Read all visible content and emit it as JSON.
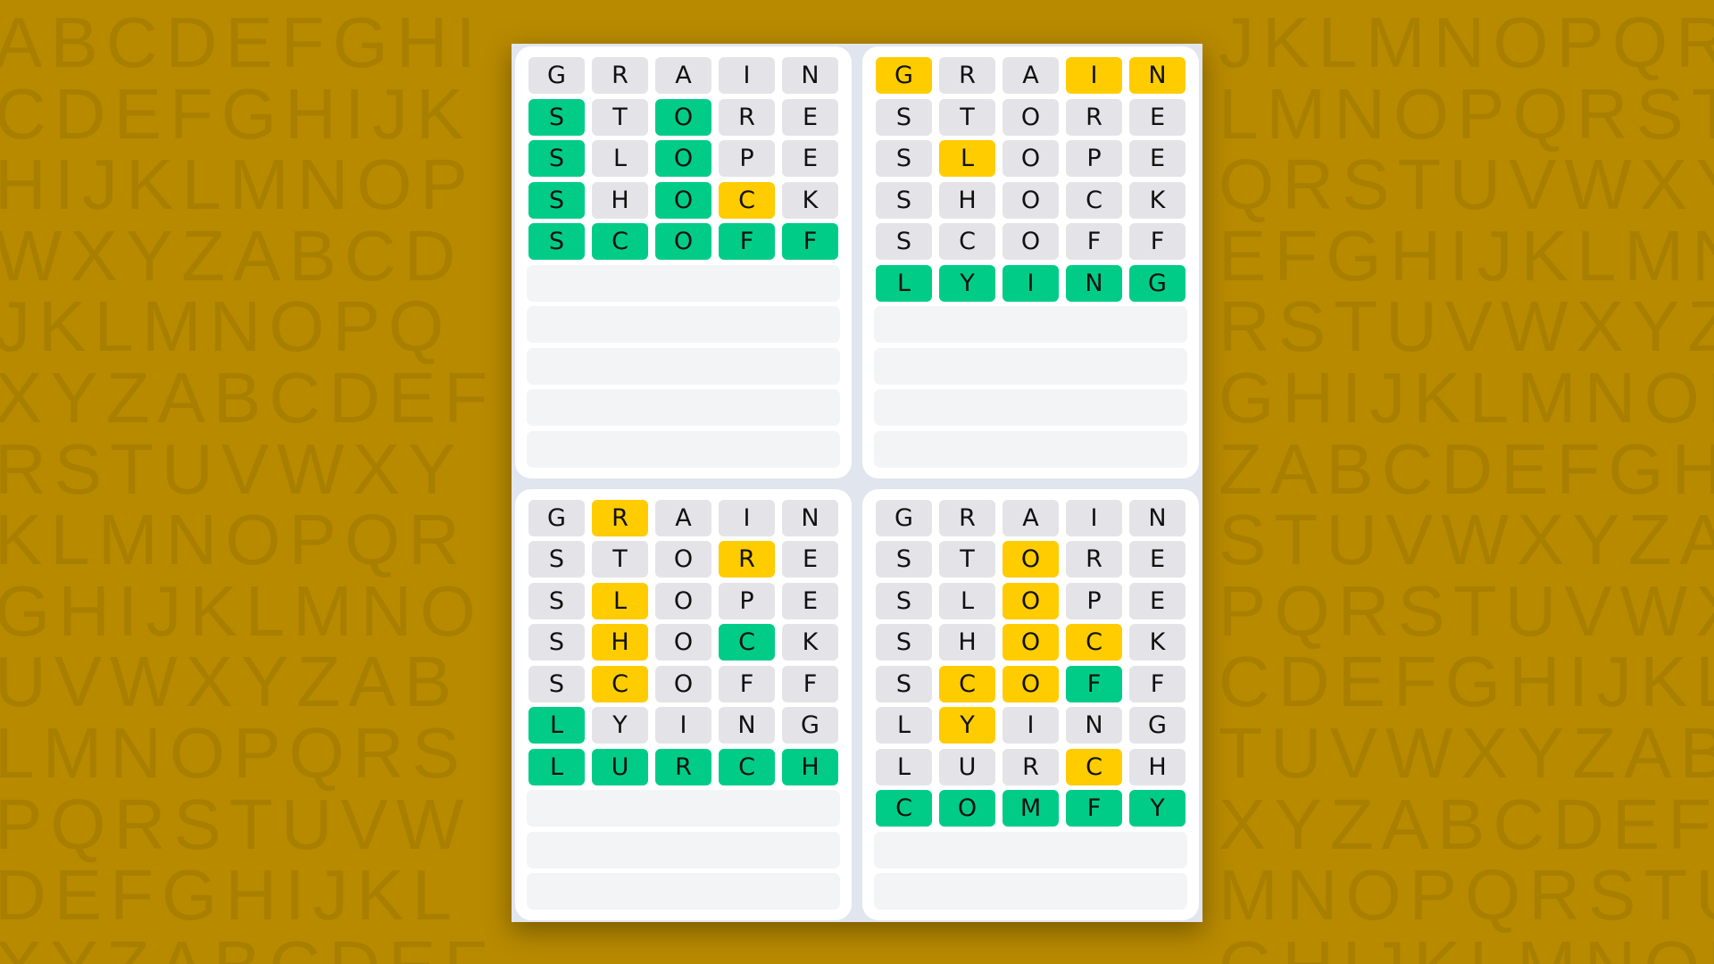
{
  "background": {
    "color": "#b88a00",
    "letter_color": "#a97f00",
    "rows": [
      "ABCDEFGHIJKLMNOPQRSTUVWXYZABCDEFG",
      "CDEFGHIJKLMNOPQRSTUVWXYZABCDEFGHI",
      "HIJKLMNOPQRSTUVWXYZABCDEFGHIJKLMN",
      "WXYZABCDEFGHIJKLMNOPQRSTUVWXYZABC",
      "JKLMNOPQRSTUVWXYZABCDEFGHIJKLMNOP",
      "XYZABCDEFGHIJKLMNOPQRSTUVWXYZABCD",
      "RSTUVWXYZABCDEFGHIJKLMNOPQRSTUVWX",
      "KLMNOPQRSTUVWXYZABCDEFGHIJKLMNOPQ",
      "GHIJKLMNOPQRSTUVWXYZABCDEFGHIJKLM",
      "UVWXYZABCDEFGHIJKLMNOPQRSTUVWXYZA",
      "LMNOPQRSTUVWXYZABCDEFGHIJKLMNOPQR",
      "PQRSTUVWXYZABCDEFGHIJKLMNOPQRSTUV",
      "DEFGHIJKLMNOPQRSTUVWXYZABCDEFGHIJ",
      "XYZABCDEFGHIJKLMNOPQRSTUVWXYZABCD"
    ]
  },
  "colors": {
    "correct": "#00cc88",
    "present": "#ffcc00",
    "absent": "#e4e4e8",
    "empty": "#f3f4f6"
  },
  "boards": [
    {
      "total_rows": 10,
      "guesses": [
        {
          "word": "GRAIN",
          "marks": "xxxxx"
        },
        {
          "word": "STORE",
          "marks": "gxgxx"
        },
        {
          "word": "SLOPE",
          "marks": "gxgxx"
        },
        {
          "word": "SHOCK",
          "marks": "gxgyx"
        },
        {
          "word": "SCOFF",
          "marks": "ggggg"
        }
      ]
    },
    {
      "total_rows": 10,
      "guesses": [
        {
          "word": "GRAIN",
          "marks": "yxxyy"
        },
        {
          "word": "STORE",
          "marks": "xxxxx"
        },
        {
          "word": "SLOPE",
          "marks": "xyxxx"
        },
        {
          "word": "SHOCK",
          "marks": "xxxxx"
        },
        {
          "word": "SCOFF",
          "marks": "xxxxx"
        },
        {
          "word": "LYING",
          "marks": "ggggg"
        }
      ]
    },
    {
      "total_rows": 10,
      "guesses": [
        {
          "word": "GRAIN",
          "marks": "xyxxx"
        },
        {
          "word": "STORE",
          "marks": "xxxyx"
        },
        {
          "word": "SLOPE",
          "marks": "xyxxx"
        },
        {
          "word": "SHOCK",
          "marks": "xyxgx"
        },
        {
          "word": "SCOFF",
          "marks": "xyxxx"
        },
        {
          "word": "LYING",
          "marks": "gxxxx"
        },
        {
          "word": "LURCH",
          "marks": "ggggg"
        }
      ]
    },
    {
      "total_rows": 10,
      "guesses": [
        {
          "word": "GRAIN",
          "marks": "xxxxx"
        },
        {
          "word": "STORE",
          "marks": "xxyxx"
        },
        {
          "word": "SLOPE",
          "marks": "xxyxx"
        },
        {
          "word": "SHOCK",
          "marks": "xxyyx"
        },
        {
          "word": "SCOFF",
          "marks": "xyygx"
        },
        {
          "word": "LYING",
          "marks": "xyxxx"
        },
        {
          "word": "LURCH",
          "marks": "xxxyx"
        },
        {
          "word": "COMFY",
          "marks": "ggggg"
        }
      ]
    }
  ]
}
